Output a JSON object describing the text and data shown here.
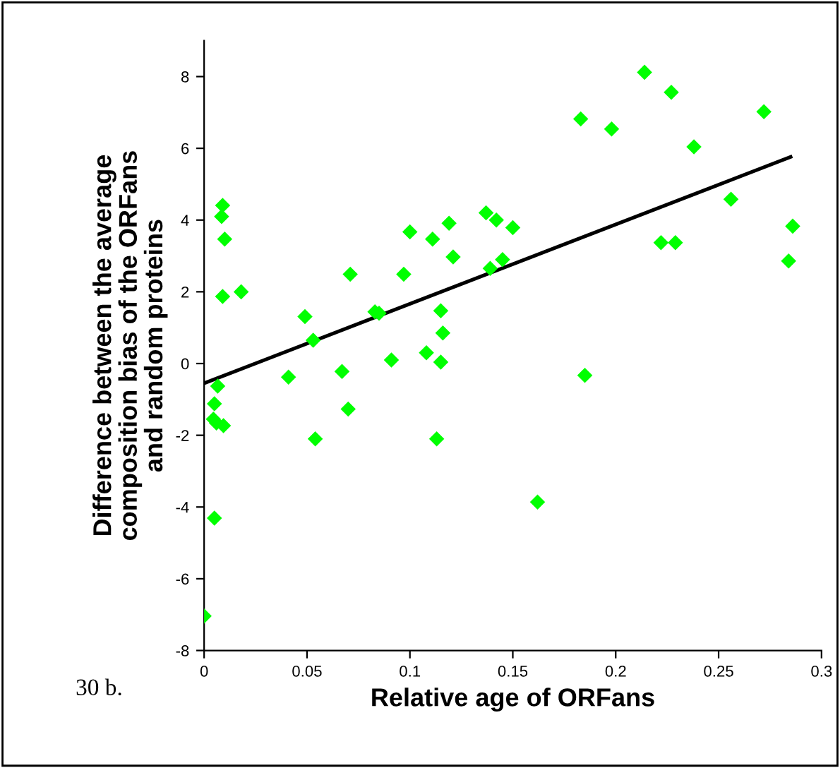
{
  "chart_data": {
    "type": "scatter",
    "xlabel": "Relative age of ORFans",
    "ylabel": "Difference between the average\ncomposition bias of the ORFans\nand random proteins",
    "annotations": [
      "30 b."
    ],
    "xlim": [
      0,
      0.3
    ],
    "xticks": [
      0,
      0.05,
      0.1,
      0.15,
      0.2,
      0.25,
      0.3
    ],
    "ylim": [
      -8,
      9
    ],
    "yticks": [
      -8,
      -6,
      -4,
      -2,
      0,
      2,
      4,
      6,
      8
    ],
    "grid": false,
    "legend": false,
    "marker": "diamond",
    "series": [
      {
        "color": "#00ff00",
        "x": [
          0.009,
          0.0085,
          0.01,
          0.009,
          0.018,
          0.049,
          0.053,
          0.071,
          0.083,
          0.085,
          0.097,
          0.1,
          0.111,
          0.119,
          0.121,
          0.115,
          0.116,
          0.137,
          0.139,
          0.142,
          0.15,
          0.145,
          0.183,
          0.198,
          0.214,
          0.227,
          0.238,
          0.272,
          0.256,
          0.222,
          0.229,
          0.286,
          0.284,
          0.041,
          0.067,
          0.091,
          0.108,
          0.115,
          0.054,
          0.07,
          0.113,
          0.0066,
          0.005,
          0.0045,
          0.006,
          0.0094,
          0.005,
          0,
          0.185,
          0.162
        ],
        "values": [
          4.41,
          4.1,
          3.47,
          1.87,
          2.0,
          1.31,
          0.65,
          2.49,
          1.44,
          1.4,
          2.49,
          3.67,
          3.47,
          3.91,
          2.97,
          1.47,
          0.85,
          4.2,
          2.65,
          4.0,
          3.79,
          2.9,
          6.82,
          6.54,
          8.12,
          7.56,
          6.04,
          7.02,
          4.58,
          3.37,
          3.37,
          3.83,
          2.86,
          -0.38,
          -0.22,
          0.1,
          0.3,
          0.04,
          -2.1,
          -1.27,
          -2.1,
          -0.63,
          -1.12,
          -1.55,
          -1.66,
          -1.73,
          -4.31,
          -7.04,
          -0.33,
          -3.86
        ]
      },
      {
        "type": "line",
        "color": "#000000",
        "marker": "none",
        "line_style": "solid",
        "x": [
          0,
          0.285
        ],
        "values": [
          -0.55,
          5.76
        ]
      }
    ]
  }
}
